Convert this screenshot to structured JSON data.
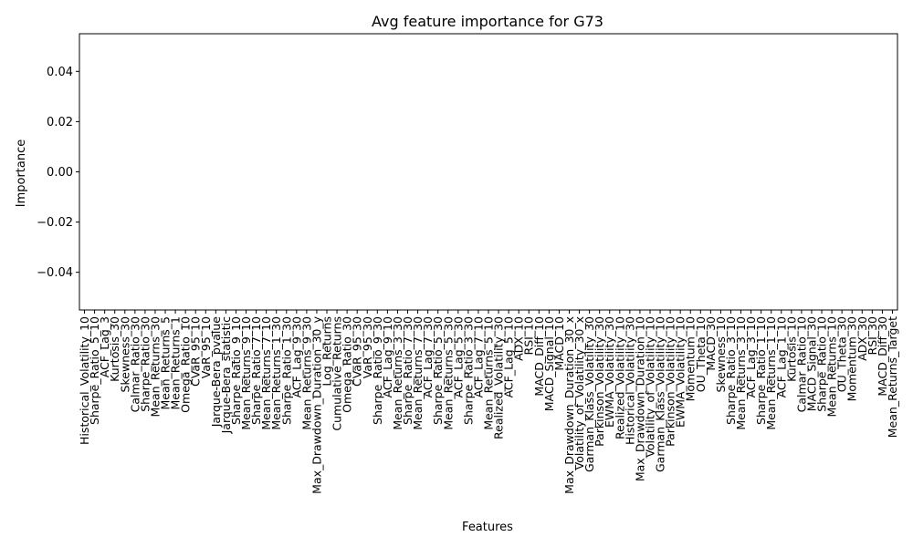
{
  "chart_data": {
    "type": "bar",
    "title": "Avg feature importance for G73",
    "xlabel": "Features",
    "ylabel": "Importance",
    "ylim": [
      -0.055,
      0.055
    ],
    "yticks": [
      -0.04,
      -0.02,
      0.0,
      0.02,
      0.04
    ],
    "ytick_labels": [
      "−0.04",
      "−0.02",
      "0.00",
      "0.02",
      "0.04"
    ],
    "grid": false,
    "legend": "none",
    "categories": [
      "Historical_Volatility_10",
      "Sharpe_Ratio_5_10",
      "ACF_Lag_3",
      "Kurtosis_30",
      "Skewness_30",
      "Calmar_Ratio_30",
      "Sharpe_Ratio_30",
      "Mean_Returns_30",
      "Mean_Returns_5",
      "Mean_Returns_1",
      "Omega_Ratio_10",
      "CVaR_95_10",
      "VaR_95_10",
      "Jarque-Bera_pvalue",
      "Jarque-Bera_statistic",
      "Sharpe_Ratio_9_10",
      "Mean_Returns_9_10",
      "Sharpe_Ratio_7_10",
      "Mean_Returns_7_10",
      "Mean_Returns_1_30",
      "Sharpe_Ratio_1_30",
      "ACF_Lag_9_30",
      "Mean_Returns_9_30",
      "Max_Drawdown_Duration_30_y",
      "Log_Returns",
      "Cumulative_Returns",
      "Omega_Ratio_30",
      "CVaR_95_30",
      "VaR_95_30",
      "Sharpe_Ratio_9_30",
      "ACF_Lag_9_10",
      "Mean_Returns_3_30",
      "Sharpe_Ratio_7_30",
      "Mean_Returns_7_30",
      "ACF_Lag_7_30",
      "Sharpe_Ratio_5_30",
      "Mean_Returns_5_30",
      "ACF_Lag_5_30",
      "Sharpe_Ratio_3_30",
      "ACF_Lag_7_10",
      "Mean_Returns_5_10",
      "Realized_Volatility_30",
      "ACF_Lag_5_10",
      "ADX_10",
      "RSI_10",
      "MACD_Diff_10",
      "MACD_Signal_10",
      "MACD_10",
      "Max_Drawdown_Duration_30_x",
      "Volatility_of_Volatility_30_x",
      "Garman_Klass_Volatility_30",
      "Parkinson_Volatility_30",
      "EWMA_Volatility_30",
      "Realized_Volatility_10",
      "Historical_Volatility_30",
      "Max_Drawdown_Duration_10",
      "Volatility_of_Volatility_10",
      "Garman_Klass_Volatility_10",
      "Parkinson_Volatility_10",
      "EWMA_Volatility_10",
      "Momentum_10",
      "OU_Theta_10",
      "MACD_30",
      "Skewness_10",
      "Sharpe_Ratio_3_10",
      "Mean_Returns_3_10",
      "ACF_Lag_3_10",
      "Sharpe_Ratio_1_10",
      "Mean_Returns_1_10",
      "ACF_Lag_1_10",
      "Kurtosis_10",
      "Calmar_Ratio_10",
      "MACD_Signal_30",
      "Sharpe_Ratio_10",
      "Mean_Returns_10",
      "OU_Theta_30",
      "Momentum_30",
      "ADX_30",
      "RSI_30",
      "MACD_Diff_30",
      "Mean_Returns_Target"
    ],
    "values": [
      0,
      0,
      0,
      0,
      0,
      0,
      0,
      0,
      0,
      0,
      0,
      0,
      0,
      0,
      0,
      0,
      0,
      0,
      0,
      0,
      0,
      0,
      0,
      0,
      0,
      0,
      0,
      0,
      0,
      0,
      0,
      0,
      0,
      0,
      0,
      0,
      0,
      0,
      0,
      0,
      0,
      0,
      0,
      0,
      0,
      0,
      0,
      0,
      0,
      0,
      0,
      0,
      0,
      0,
      0,
      0,
      0,
      0,
      0,
      0,
      0,
      0,
      0,
      0,
      0,
      0,
      0,
      0,
      0,
      0,
      0,
      0,
      0,
      0,
      0,
      0,
      0,
      0,
      0,
      0,
      0
    ],
    "colors": {
      "bar": "#1f77b4",
      "axis": "#000000"
    }
  }
}
